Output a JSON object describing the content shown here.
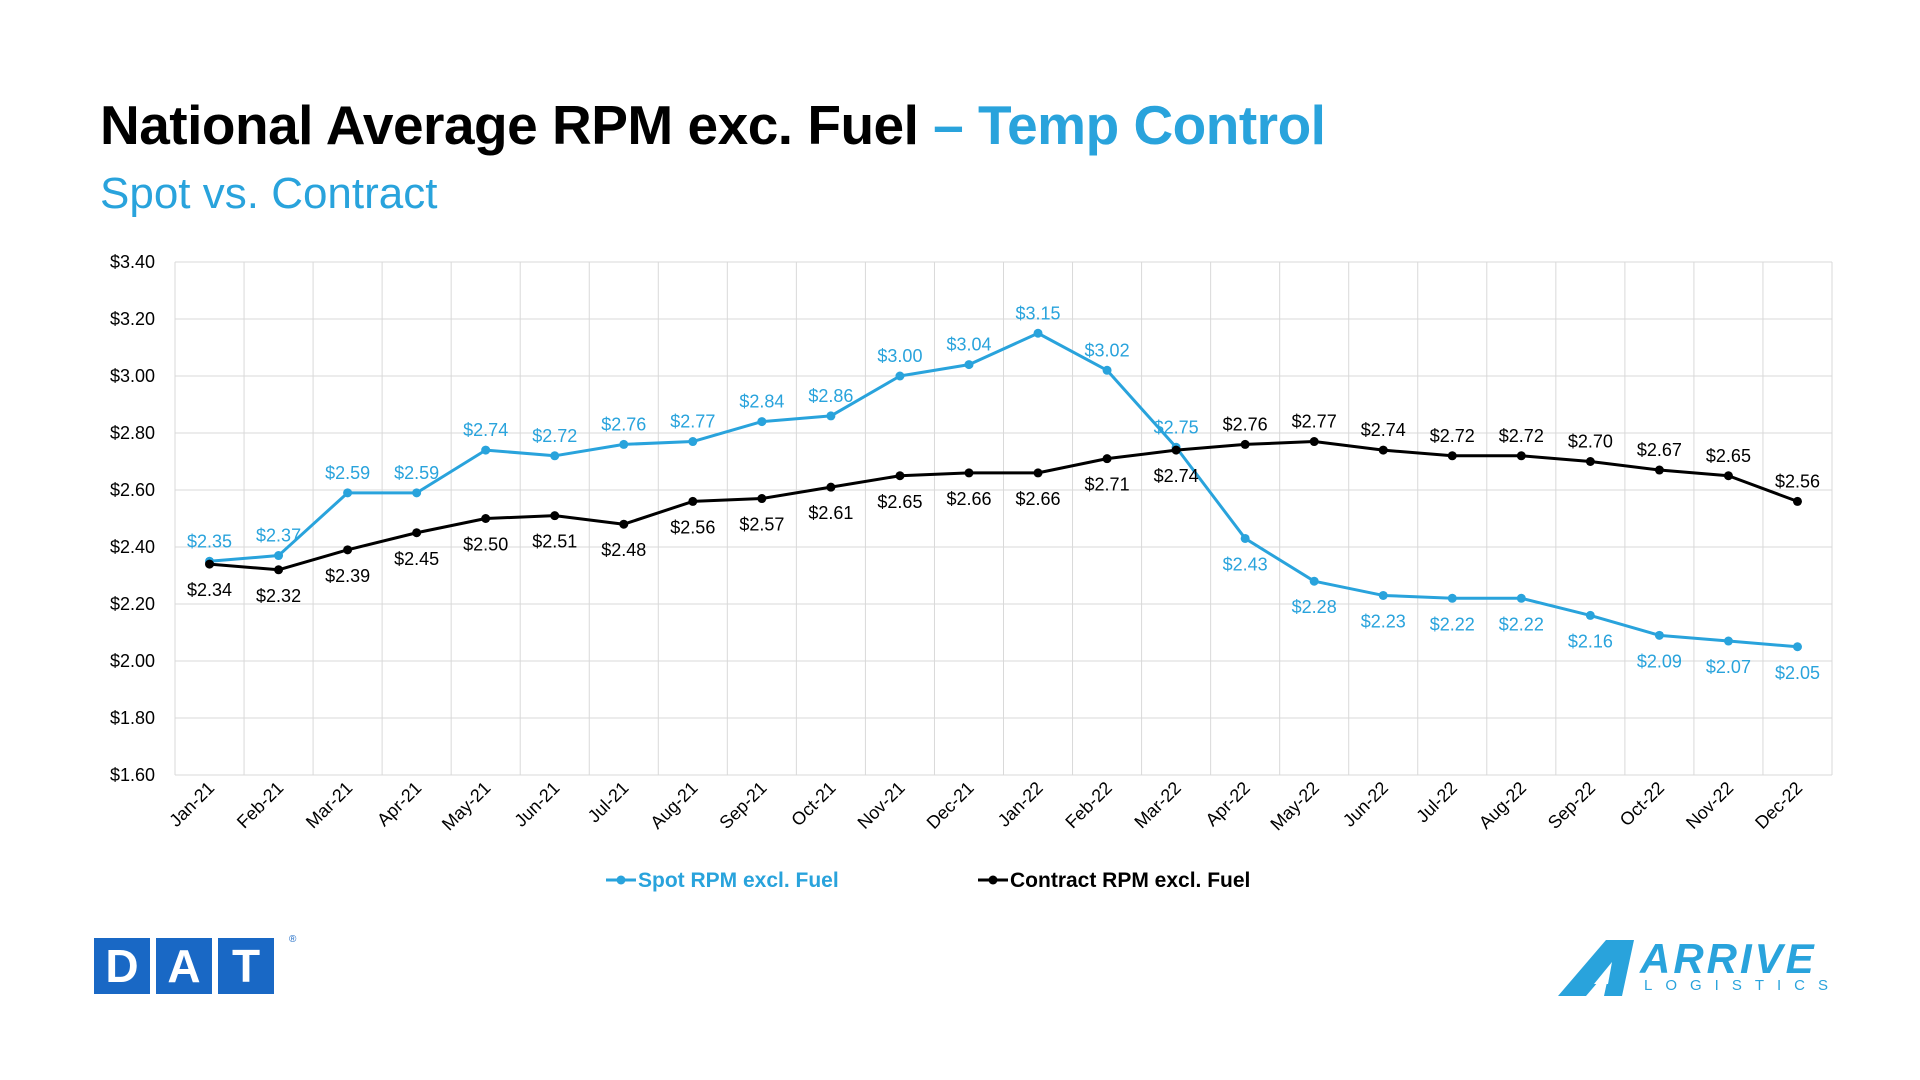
{
  "header": {
    "title_main": "National Average RPM exc. Fuel",
    "title_accent": " – Temp Control",
    "subtitle": "Spot vs. Contract"
  },
  "logos": {
    "dat": [
      "D",
      "A",
      "T"
    ],
    "dat_reg": "®",
    "arrive_name": "ARRIVE",
    "arrive_sub": "LOGISTICS"
  },
  "colors": {
    "spot": "#29a3dc",
    "contract": "#000000",
    "brand_blue": "#1968c5"
  },
  "chart_data": {
    "type": "line",
    "categories": [
      "Jan-21",
      "Feb-21",
      "Mar-21",
      "Apr-21",
      "May-21",
      "Jun-21",
      "Jul-21",
      "Aug-21",
      "Sep-21",
      "Oct-21",
      "Nov-21",
      "Dec-21",
      "Jan-22",
      "Feb-22",
      "Mar-22",
      "Apr-22",
      "May-22",
      "Jun-22",
      "Jul-22",
      "Aug-22",
      "Sep-22",
      "Oct-22",
      "Nov-22",
      "Dec-22"
    ],
    "y_ticks": [
      "$1.60",
      "$1.80",
      "$2.00",
      "$2.20",
      "$2.40",
      "$2.60",
      "$2.80",
      "$3.00",
      "$3.20",
      "$3.40"
    ],
    "ylim": [
      1.6,
      3.4
    ],
    "grid": true,
    "legend_position": "bottom",
    "series": [
      {
        "name": "Spot RPM excl. Fuel",
        "color": "#29a3dc",
        "values": [
          2.35,
          2.37,
          2.59,
          2.59,
          2.74,
          2.72,
          2.76,
          2.77,
          2.84,
          2.86,
          3.0,
          3.04,
          3.15,
          3.02,
          2.75,
          2.43,
          2.28,
          2.23,
          2.22,
          2.22,
          2.16,
          2.09,
          2.07,
          2.05
        ],
        "labels": [
          "$2.35",
          "$2.37",
          "$2.59",
          "$2.59",
          "$2.74",
          "$2.72",
          "$2.76",
          "$2.77",
          "$2.84",
          "$2.86",
          "$3.00",
          "$3.04",
          "$3.15",
          "$3.02",
          "$2.75",
          "$2.43",
          "$2.28",
          "$2.23",
          "$2.22",
          "$2.22",
          "$2.16",
          "$2.09",
          "$2.07",
          "$2.05"
        ]
      },
      {
        "name": "Contract RPM excl. Fuel",
        "color": "#000000",
        "values": [
          2.34,
          2.32,
          2.39,
          2.45,
          2.5,
          2.51,
          2.48,
          2.56,
          2.57,
          2.61,
          2.65,
          2.66,
          2.66,
          2.71,
          2.74,
          2.76,
          2.77,
          2.74,
          2.72,
          2.72,
          2.7,
          2.67,
          2.65,
          2.56
        ],
        "labels": [
          "$2.34",
          "$2.32",
          "$2.39",
          "$2.45",
          "$2.50",
          "$2.51",
          "$2.48",
          "$2.56",
          "$2.57",
          "$2.61",
          "$2.65",
          "$2.66",
          "$2.66",
          "$2.71",
          "$2.74",
          "$2.76",
          "$2.77",
          "$2.74",
          "$2.72",
          "$2.72",
          "$2.70",
          "$2.67",
          "$2.65",
          "$2.56"
        ]
      }
    ]
  }
}
